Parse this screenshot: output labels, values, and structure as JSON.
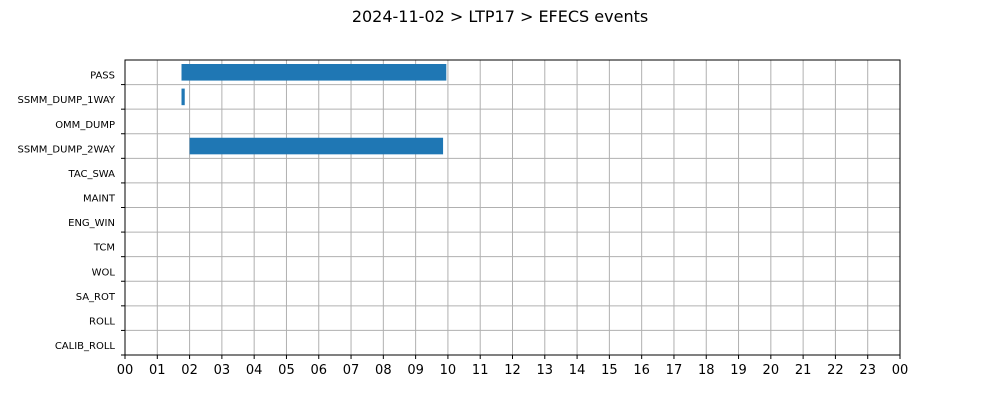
{
  "chart_data": {
    "type": "bar",
    "orientation": "horizontal",
    "title": "2024-11-02 > LTP17 > EFECS events",
    "xlabel": "",
    "ylabel": "",
    "categories": [
      "PASS",
      "SSMM_DUMP_1WAY",
      "OMM_DUMP",
      "SSMM_DUMP_2WAY",
      "TAC_SWA",
      "MAINT",
      "ENG_WIN",
      "TCM",
      "WOL",
      "SA_ROT",
      "ROLL",
      "CALIB_ROLL"
    ],
    "x_tick_labels": [
      "00",
      "01",
      "02",
      "03",
      "04",
      "05",
      "06",
      "07",
      "08",
      "09",
      "10",
      "11",
      "12",
      "13",
      "14",
      "15",
      "16",
      "17",
      "18",
      "19",
      "20",
      "21",
      "22",
      "23",
      "00"
    ],
    "xlim": [
      0,
      24
    ],
    "x_unit": "hours",
    "grid": true,
    "bar_color": "#1f77b4",
    "events": [
      {
        "category": "PASS",
        "start": 1.75,
        "end": 9.95
      },
      {
        "category": "SSMM_DUMP_1WAY",
        "start": 1.75,
        "end": 1.85
      },
      {
        "category": "SSMM_DUMP_2WAY",
        "start": 2.0,
        "end": 9.85
      }
    ]
  }
}
